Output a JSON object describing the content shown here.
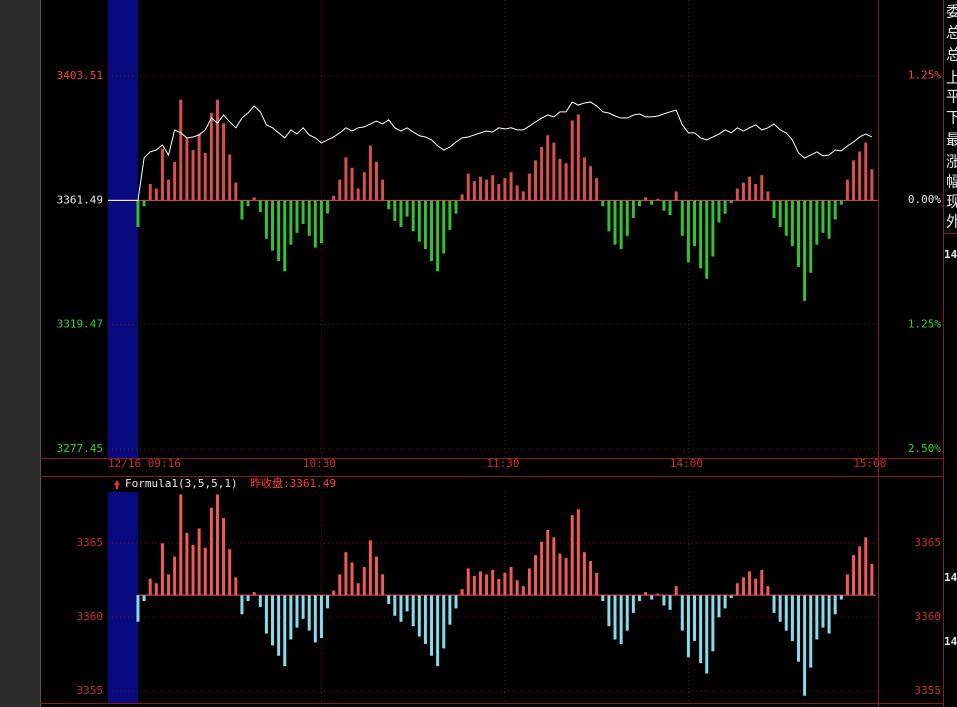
{
  "chart_data": [
    {
      "type": "intraday",
      "x": [
        0,
        2,
        4,
        6,
        8,
        10,
        12,
        14,
        16,
        18,
        20,
        22,
        24,
        26,
        28,
        30,
        32,
        34,
        36,
        38,
        40,
        42,
        44,
        46,
        48,
        50,
        52,
        54,
        56,
        58,
        60,
        62,
        64,
        66,
        68,
        70,
        72,
        74,
        76,
        78,
        80,
        82,
        84,
        86,
        88,
        90,
        92,
        94,
        96,
        98,
        100,
        102,
        104,
        106,
        108,
        110,
        112,
        114,
        116,
        118,
        120,
        122,
        124,
        126,
        128,
        130,
        132,
        134,
        136,
        138,
        140,
        142,
        144,
        146,
        148,
        150,
        152,
        154,
        156,
        158,
        160,
        162,
        164,
        166,
        168,
        170,
        172,
        174,
        176,
        178,
        180,
        182,
        184,
        186,
        188,
        190,
        192,
        194,
        196,
        198,
        200,
        202,
        204,
        206,
        208,
        210,
        212,
        214,
        216,
        218,
        220,
        222,
        224,
        226,
        228,
        230,
        232,
        234,
        236,
        238,
        240
      ],
      "xlim": [
        -9.8,
        242
      ],
      "xticks": [
        {
          "value": 0,
          "label": "12/16 09:16"
        },
        {
          "value": 60,
          "label": "10:30"
        },
        {
          "value": 120,
          "label": "11:30"
        },
        {
          "value": 180,
          "label": "14:00"
        },
        {
          "value": 240,
          "label": "15:00"
        }
      ],
      "ylim": [
        3274.4,
        3429.2
      ],
      "yticks": [
        3403.51,
        3361.49,
        3319.47,
        3277.45
      ],
      "y2lim": [
        -2.59,
        2.01
      ],
      "y2ticks": [
        {
          "value": 1.25,
          "label": "1.25%"
        },
        {
          "value": 0,
          "label": "0.00%"
        },
        {
          "value": -1.25,
          "label": "1.25%"
        },
        {
          "value": -2.5,
          "label": "2.50%"
        }
      ],
      "baseline": 3361.49,
      "grid": true,
      "line": {
        "color": "#ffffff",
        "values": [
          3361.49,
          3375.8,
          3377.9,
          3378.5,
          3380.2,
          3376.8,
          3385.3,
          3384.3,
          3382.6,
          3382.9,
          3383.6,
          3385.3,
          3389.3,
          3387.6,
          3390.3,
          3388.0,
          3386.0,
          3389.3,
          3391.0,
          3393.4,
          3391.4,
          3387.0,
          3386.0,
          3384.3,
          3382.6,
          3385.3,
          3383.9,
          3386.0,
          3383.6,
          3382.6,
          3380.9,
          3381.9,
          3382.9,
          3384.3,
          3386.0,
          3384.9,
          3386.0,
          3386.3,
          3387.3,
          3388.3,
          3387.3,
          3388.7,
          3386.0,
          3384.9,
          3386.0,
          3384.6,
          3383.3,
          3382.9,
          3381.9,
          3379.9,
          3378.5,
          3379.5,
          3381.2,
          3382.6,
          3382.9,
          3383.6,
          3384.3,
          3384.9,
          3384.6,
          3386.0,
          3385.6,
          3386.0,
          3385.3,
          3385.3,
          3386.6,
          3388.0,
          3389.3,
          3390.3,
          3389.7,
          3391.4,
          3391.4,
          3394.7,
          3393.7,
          3394.4,
          3394.7,
          3393.4,
          3391.4,
          3391.0,
          3390.0,
          3389.3,
          3389.3,
          3390.3,
          3390.7,
          3389.7,
          3389.7,
          3390.0,
          3390.7,
          3391.4,
          3392.0,
          3387.0,
          3384.3,
          3384.3,
          3382.6,
          3381.9,
          3382.9,
          3383.9,
          3385.3,
          3384.3,
          3386.0,
          3384.9,
          3386.0,
          3387.0,
          3385.3,
          3386.0,
          3387.3,
          3385.3,
          3384.3,
          3381.9,
          3377.5,
          3375.8,
          3376.8,
          3377.9,
          3376.5,
          3376.8,
          3378.5,
          3378.2,
          3379.9,
          3381.2,
          3382.9,
          3383.9,
          3382.9
        ]
      },
      "bars": {
        "up_color": "#d9504f",
        "down_color": "#33c233",
        "values": [
          3352.5,
          3359.5,
          3367.0,
          3365.5,
          3379.0,
          3368.5,
          3374.5,
          3395.5,
          3382.5,
          3378.5,
          3384.0,
          3377.5,
          3391.0,
          3395.5,
          3387.5,
          3377.0,
          3367.5,
          3355.0,
          3359.5,
          3362.5,
          3357.5,
          3348.5,
          3344.5,
          3341.0,
          3337.5,
          3346.5,
          3350.5,
          3353.5,
          3349.5,
          3345.5,
          3347.0,
          3357.0,
          3363.0,
          3368.5,
          3376.0,
          3372.5,
          3365.5,
          3371.0,
          3380.0,
          3374.5,
          3368.5,
          3358.5,
          3354.5,
          3352.5,
          3356.0,
          3351.0,
          3347.5,
          3345.0,
          3341.0,
          3337.5,
          3343.5,
          3351.5,
          3357.0,
          3363.5,
          3370.5,
          3368.0,
          3369.5,
          3368.5,
          3370.0,
          3367.0,
          3369.0,
          3371.0,
          3366.5,
          3364.5,
          3370.5,
          3375.0,
          3379.5,
          3383.5,
          3381.0,
          3375.5,
          3374.0,
          3388.5,
          3390.5,
          3376.0,
          3373.0,
          3369.0,
          3359.5,
          3351.0,
          3346.5,
          3345.0,
          3349.5,
          3355.5,
          3359.5,
          3362.5,
          3360.0,
          3362.0,
          3358.0,
          3356.5,
          3364.5,
          3349.5,
          3340.5,
          3346.0,
          3338.5,
          3335.0,
          3342.5,
          3354.0,
          3357.0,
          3360.5,
          3365.5,
          3367.5,
          3369.5,
          3367.0,
          3370.0,
          3364.5,
          3355.5,
          3352.5,
          3349.5,
          3346.0,
          3339.0,
          3327.5,
          3337.0,
          3346.5,
          3350.5,
          3348.5,
          3355.0,
          3360.0,
          3368.5,
          3375.0,
          3378.0,
          3381.0,
          3372.0
        ]
      }
    },
    {
      "type": "bar",
      "title": "Formula1(3,5,5,1)",
      "reference": {
        "value": 3361.49,
        "label": "昨收盘:3361.49"
      },
      "x": [
        0,
        2,
        4,
        6,
        8,
        10,
        12,
        14,
        16,
        18,
        20,
        22,
        24,
        26,
        28,
        30,
        32,
        34,
        36,
        38,
        40,
        42,
        44,
        46,
        48,
        50,
        52,
        54,
        56,
        58,
        60,
        62,
        64,
        66,
        68,
        70,
        72,
        74,
        76,
        78,
        80,
        82,
        84,
        86,
        88,
        90,
        92,
        94,
        96,
        98,
        100,
        102,
        104,
        106,
        108,
        110,
        112,
        114,
        116,
        118,
        120,
        122,
        124,
        126,
        128,
        130,
        132,
        134,
        136,
        138,
        140,
        142,
        144,
        146,
        148,
        150,
        152,
        154,
        156,
        158,
        160,
        162,
        164,
        166,
        168,
        170,
        172,
        174,
        176,
        178,
        180,
        182,
        184,
        186,
        188,
        190,
        192,
        194,
        196,
        198,
        200,
        202,
        204,
        206,
        208,
        210,
        212,
        214,
        216,
        218,
        220,
        222,
        224,
        226,
        228,
        230,
        232,
        234,
        236,
        238,
        240
      ],
      "xlim": [
        -9.8,
        242
      ],
      "ylim": [
        3354.2,
        3369.4
      ],
      "yticks": [
        3365,
        3360,
        3355
      ],
      "y2lim": [
        3354.2,
        3369.4
      ],
      "y2ticks": [
        3365,
        3360,
        3355
      ],
      "grid": true,
      "up_color": "#f05a5a",
      "down_color": "#86dcec",
      "values": [
        3359.69,
        3361.09,
        3362.59,
        3362.29,
        3364.99,
        3362.89,
        3364.09,
        3368.29,
        3365.69,
        3364.89,
        3365.99,
        3364.69,
        3367.39,
        3368.29,
        3366.69,
        3364.59,
        3362.69,
        3360.19,
        3361.09,
        3361.69,
        3360.69,
        3358.89,
        3358.09,
        3357.39,
        3356.69,
        3358.49,
        3359.29,
        3359.89,
        3359.09,
        3358.29,
        3358.59,
        3360.59,
        3361.79,
        3362.89,
        3364.39,
        3363.69,
        3362.29,
        3363.39,
        3365.19,
        3364.09,
        3362.89,
        3360.89,
        3360.09,
        3359.69,
        3360.39,
        3359.39,
        3358.69,
        3358.19,
        3357.39,
        3356.69,
        3357.89,
        3359.49,
        3360.59,
        3361.89,
        3363.29,
        3362.79,
        3363.09,
        3362.89,
        3363.19,
        3362.59,
        3362.99,
        3363.39,
        3362.49,
        3362.09,
        3363.29,
        3364.19,
        3365.09,
        3365.89,
        3365.39,
        3364.29,
        3363.99,
        3366.89,
        3367.29,
        3364.39,
        3363.79,
        3362.99,
        3361.09,
        3359.39,
        3358.49,
        3358.19,
        3359.09,
        3360.29,
        3361.09,
        3361.69,
        3361.19,
        3361.59,
        3360.79,
        3360.49,
        3362.09,
        3359.09,
        3357.29,
        3358.39,
        3356.89,
        3356.19,
        3357.69,
        3359.99,
        3360.59,
        3361.29,
        3362.29,
        3362.69,
        3363.09,
        3362.59,
        3363.19,
        3362.09,
        3360.29,
        3359.69,
        3359.09,
        3358.39,
        3356.99,
        3354.69,
        3356.59,
        3358.49,
        3359.29,
        3358.89,
        3360.19,
        3361.19,
        3362.89,
        3364.19,
        3364.79,
        3365.39,
        3363.59
      ]
    }
  ],
  "sidebar": {
    "labels": [
      "委",
      "总",
      "总",
      "上",
      "平",
      "下",
      "最",
      "涨",
      "幅",
      "现",
      "外"
    ],
    "numbers": [
      "14",
      "14",
      "14"
    ]
  }
}
